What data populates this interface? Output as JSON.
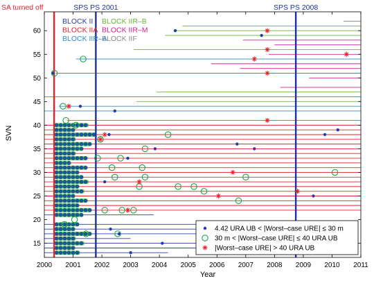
{
  "chart_data": {
    "type": "scatter",
    "xlabel": "Year",
    "ylabel": "SVN",
    "xlim": [
      2000,
      2011
    ],
    "ylim": [
      12,
      64
    ],
    "xticks": [
      "2000",
      "2001",
      "2002",
      "2003",
      "2004",
      "2005",
      "2006",
      "2007",
      "2008",
      "2009",
      "2010",
      "2011"
    ],
    "yticks": [
      "15",
      "20",
      "25",
      "30",
      "35",
      "40",
      "45",
      "50",
      "55",
      "60"
    ],
    "grid": false,
    "events": [
      {
        "label": "SA turned off",
        "x": 2000.34,
        "color": "#e8202a"
      },
      {
        "label": "SPS PS 2001",
        "x": 2001.79,
        "color": "#1f2f9e"
      },
      {
        "label": "SPS PS 2008",
        "x": 2008.74,
        "color": "#1f2f9e"
      }
    ],
    "block_legend": [
      {
        "name": "BLOCK II",
        "color": "#2a3da8"
      },
      {
        "name": "BLOCK IIA",
        "color": "#e8202a"
      },
      {
        "name": "BLOCK IIR–A",
        "color": "#2e8ed6"
      },
      {
        "name": "BLOCK IIR–B",
        "color": "#6ab536"
      },
      {
        "name": "BLOCK IIR–M",
        "color": "#d0238f"
      },
      {
        "name": "BLOCK IIF",
        "color": "#8c8c8c"
      }
    ],
    "marker_legend": [
      {
        "label": "4.42 URA UB < |Worst–case URE| ≤ 30 m",
        "marker": "dot",
        "color": "#1f3fa8"
      },
      {
        "label": "30 m < |Worst–case URE| ≤ 40 URA UB",
        "marker": "circle",
        "color": "#1aa34a"
      },
      {
        "label": "|Worst–case URE| > 40 URA UB",
        "marker": "star",
        "color": "#e8202a"
      }
    ],
    "service_intervals": [
      {
        "svn": 62,
        "block": "BLOCK IIF",
        "start": 2010.4,
        "end": 2011
      },
      {
        "svn": 61,
        "block": "BLOCK IIR–B",
        "start": 2004.8,
        "end": 2011
      },
      {
        "svn": 60,
        "block": "BLOCK IIR–B",
        "start": 2004.5,
        "end": 2011
      },
      {
        "svn": 59,
        "block": "BLOCK IIR–B",
        "start": 2004.2,
        "end": 2011
      },
      {
        "svn": 58,
        "block": "BLOCK IIR–M",
        "start": 2006.9,
        "end": 2011
      },
      {
        "svn": 57,
        "block": "BLOCK IIR–M",
        "start": 2008.0,
        "end": 2011
      },
      {
        "svn": 56,
        "block": "BLOCK IIR–B",
        "start": 2003.1,
        "end": 2011
      },
      {
        "svn": 55,
        "block": "BLOCK IIR–M",
        "start": 2007.8,
        "end": 2011
      },
      {
        "svn": 54,
        "block": "BLOCK IIR–A",
        "start": 2001.1,
        "end": 2011
      },
      {
        "svn": 53,
        "block": "BLOCK IIR–M",
        "start": 2005.8,
        "end": 2011
      },
      {
        "svn": 52,
        "block": "BLOCK IIR–M",
        "start": 2006.8,
        "end": 2011
      },
      {
        "svn": 51,
        "block": "BLOCK IIR–A",
        "start": 2000.4,
        "end": 2011
      },
      {
        "svn": 50,
        "block": "BLOCK IIR–M",
        "start": 2009.2,
        "end": 2011
      },
      {
        "svn": 48,
        "block": "BLOCK IIR–M",
        "start": 2008.2,
        "end": 2011
      },
      {
        "svn": 47,
        "block": "BLOCK IIR–B",
        "start": 2003.9,
        "end": 2011
      },
      {
        "svn": 46,
        "block": "BLOCK IIR–A",
        "start": 2000.0,
        "end": 2011
      },
      {
        "svn": 45,
        "block": "BLOCK IIR–B",
        "start": 2003.2,
        "end": 2011
      },
      {
        "svn": 44,
        "block": "BLOCK IIR–A",
        "start": 2000.5,
        "end": 2011
      },
      {
        "svn": 43,
        "block": "BLOCK IIR–A",
        "start": 2000.0,
        "end": 2011
      },
      {
        "svn": 41,
        "block": "BLOCK IIR–A",
        "start": 2000.8,
        "end": 2011
      },
      {
        "svn": 40,
        "block": "BLOCK IIA",
        "start": 2000.0,
        "end": 2011
      },
      {
        "svn": 39,
        "block": "BLOCK IIA",
        "start": 2000.0,
        "end": 2011
      },
      {
        "svn": 38,
        "block": "BLOCK IIA",
        "start": 2000.0,
        "end": 2011
      },
      {
        "svn": 37,
        "block": "BLOCK IIA",
        "start": 2000.0,
        "end": 2011
      },
      {
        "svn": 36,
        "block": "BLOCK IIA",
        "start": 2000.0,
        "end": 2011
      },
      {
        "svn": 35,
        "block": "BLOCK IIA",
        "start": 2000.0,
        "end": 2011
      },
      {
        "svn": 34,
        "block": "BLOCK IIA",
        "start": 2000.0,
        "end": 2011
      },
      {
        "svn": 33,
        "block": "BLOCK IIA",
        "start": 2000.0,
        "end": 2011
      },
      {
        "svn": 32,
        "block": "BLOCK IIA",
        "start": 2000.0,
        "end": 2011
      },
      {
        "svn": 31,
        "block": "BLOCK IIA",
        "start": 2000.0,
        "end": 2011
      },
      {
        "svn": 30,
        "block": "BLOCK IIA",
        "start": 2000.0,
        "end": 2011
      },
      {
        "svn": 29,
        "block": "BLOCK IIA",
        "start": 2000.0,
        "end": 2011
      },
      {
        "svn": 28,
        "block": "BLOCK IIA",
        "start": 2000.0,
        "end": 2011
      },
      {
        "svn": 27,
        "block": "BLOCK IIA",
        "start": 2000.0,
        "end": 2011
      },
      {
        "svn": 26,
        "block": "BLOCK IIA",
        "start": 2000.0,
        "end": 2011
      },
      {
        "svn": 25,
        "block": "BLOCK IIA",
        "start": 2000.0,
        "end": 2011
      },
      {
        "svn": 24,
        "block": "BLOCK IIA",
        "start": 2000.0,
        "end": 2011
      },
      {
        "svn": 23,
        "block": "BLOCK IIA",
        "start": 2000.0,
        "end": 2011
      },
      {
        "svn": 22,
        "block": "BLOCK IIA",
        "start": 2000.0,
        "end": 2011
      },
      {
        "svn": 21,
        "block": "BLOCK II",
        "start": 2000.0,
        "end": 2003.8
      },
      {
        "svn": 19,
        "block": "BLOCK II",
        "start": 2000.0,
        "end": 2008.5
      },
      {
        "svn": 18,
        "block": "BLOCK II",
        "start": 2000.0,
        "end": 2005.8
      },
      {
        "svn": 17,
        "block": "BLOCK II",
        "start": 2000.0,
        "end": 2008.2
      },
      {
        "svn": 16,
        "block": "BLOCK II",
        "start": 2000.0,
        "end": 2003.0
      },
      {
        "svn": 15,
        "block": "BLOCK II",
        "start": 2000.0,
        "end": 2006.9
      },
      {
        "svn": 14,
        "block": "BLOCK II",
        "start": 2000.0,
        "end": 2006.6
      },
      {
        "svn": 13,
        "block": "BLOCK II",
        "start": 2000.0,
        "end": 2004.3
      }
    ],
    "dot_events": [
      {
        "svn": 60,
        "x": 2004.55
      },
      {
        "svn": 59,
        "x": 2007.55
      },
      {
        "svn": 51,
        "x": 2000.3
      },
      {
        "svn": 44,
        "x": 2001.25
      },
      {
        "svn": 43,
        "x": 2002.45
      },
      {
        "svn": 40,
        "x": 2001.3
      },
      {
        "svn": 39,
        "x": 2010.2
      },
      {
        "svn": 38,
        "x": 2002.25
      },
      {
        "svn": 38,
        "x": 2009.75
      },
      {
        "svn": 36,
        "x": 2006.7
      },
      {
        "svn": 35,
        "x": 2003.85
      },
      {
        "svn": 35,
        "x": 2007.3
      },
      {
        "svn": 33,
        "x": 2002.9
      },
      {
        "svn": 28,
        "x": 2002.1
      },
      {
        "svn": 25,
        "x": 2009.35
      },
      {
        "svn": 18,
        "x": 2002.3
      },
      {
        "svn": 17,
        "x": 2002.6
      },
      {
        "svn": 15,
        "x": 2004.1
      },
      {
        "svn": 13,
        "x": 2003.0
      }
    ],
    "circle_events": [
      {
        "svn": 54,
        "x": 2001.35
      },
      {
        "svn": 51,
        "x": 2000.35
      },
      {
        "svn": 44,
        "x": 2000.65
      },
      {
        "svn": 41,
        "x": 2000.75
      },
      {
        "svn": 40,
        "x": 2001.1
      },
      {
        "svn": 38,
        "x": 2004.3
      },
      {
        "svn": 37,
        "x": 2001.95
      },
      {
        "svn": 35,
        "x": 2003.5
      },
      {
        "svn": 33,
        "x": 2002.65
      },
      {
        "svn": 33,
        "x": 2001.85
      },
      {
        "svn": 31,
        "x": 2002.35
      },
      {
        "svn": 31,
        "x": 2003.4
      },
      {
        "svn": 30,
        "x": 2010.1
      },
      {
        "svn": 29,
        "x": 2002.45
      },
      {
        "svn": 29,
        "x": 2003.5
      },
      {
        "svn": 29,
        "x": 2007.0
      },
      {
        "svn": 27,
        "x": 2003.3
      },
      {
        "svn": 27,
        "x": 2004.65
      },
      {
        "svn": 27,
        "x": 2005.2
      },
      {
        "svn": 26,
        "x": 2005.55
      },
      {
        "svn": 24,
        "x": 2006.75
      },
      {
        "svn": 22,
        "x": 2002.1
      },
      {
        "svn": 22,
        "x": 2002.7
      },
      {
        "svn": 22,
        "x": 2003.1
      },
      {
        "svn": 20,
        "x": 2001.05
      },
      {
        "svn": 19,
        "x": 2000.7
      },
      {
        "svn": 17,
        "x": 2001.45
      },
      {
        "svn": 17,
        "x": 2002.55
      }
    ],
    "star_events": [
      {
        "svn": 60,
        "x": 2007.75
      },
      {
        "svn": 56,
        "x": 2007.75
      },
      {
        "svn": 55,
        "x": 2010.5
      },
      {
        "svn": 54,
        "x": 2007.3
      },
      {
        "svn": 51,
        "x": 2007.75
      },
      {
        "svn": 44,
        "x": 2000.85
      },
      {
        "svn": 41,
        "x": 2007.75
      },
      {
        "svn": 38,
        "x": 2002.1
      },
      {
        "svn": 37,
        "x": 2001.95
      },
      {
        "svn": 30,
        "x": 2006.55
      },
      {
        "svn": 28,
        "x": 2003.3
      },
      {
        "svn": 26,
        "x": 2008.8
      },
      {
        "svn": 25,
        "x": 2006.05
      },
      {
        "svn": 22,
        "x": 2002.9
      }
    ],
    "early_clusters": [
      {
        "svn": 40,
        "start": 2000.35,
        "end": 2001.55
      },
      {
        "svn": 39,
        "start": 2000.35,
        "end": 2001.0
      },
      {
        "svn": 38,
        "start": 2000.35,
        "end": 2001.75
      },
      {
        "svn": 37,
        "start": 2000.35,
        "end": 2001.1
      },
      {
        "svn": 36,
        "start": 2000.35,
        "end": 2001.6
      },
      {
        "svn": 35,
        "start": 2000.35,
        "end": 2001.3
      },
      {
        "svn": 34,
        "start": 2000.35,
        "end": 2001.1
      },
      {
        "svn": 33,
        "start": 2000.35,
        "end": 2001.5
      },
      {
        "svn": 32,
        "start": 2000.35,
        "end": 2000.9
      },
      {
        "svn": 31,
        "start": 2000.35,
        "end": 2001.45
      },
      {
        "svn": 30,
        "start": 2000.35,
        "end": 2001.15
      },
      {
        "svn": 29,
        "start": 2000.35,
        "end": 2001.3
      },
      {
        "svn": 28,
        "start": 2000.35,
        "end": 2001.55
      },
      {
        "svn": 27,
        "start": 2000.35,
        "end": 2001.2
      },
      {
        "svn": 26,
        "start": 2000.35,
        "end": 2001.4
      },
      {
        "svn": 25,
        "start": 2000.35,
        "end": 2001.0
      },
      {
        "svn": 24,
        "start": 2000.35,
        "end": 2001.5
      },
      {
        "svn": 23,
        "start": 2000.35,
        "end": 2001.2
      },
      {
        "svn": 22,
        "start": 2000.35,
        "end": 2001.65
      },
      {
        "svn": 21,
        "start": 2000.35,
        "end": 2001.3
      },
      {
        "svn": 19,
        "start": 2000.35,
        "end": 2001.2
      },
      {
        "svn": 18,
        "start": 2000.35,
        "end": 2001.0
      },
      {
        "svn": 17,
        "start": 2000.35,
        "end": 2001.6
      },
      {
        "svn": 16,
        "start": 2000.35,
        "end": 2001.1
      },
      {
        "svn": 15,
        "start": 2000.35,
        "end": 2001.4
      },
      {
        "svn": 14,
        "start": 2000.35,
        "end": 2001.0
      },
      {
        "svn": 13,
        "start": 2000.35,
        "end": 2001.25
      }
    ]
  }
}
